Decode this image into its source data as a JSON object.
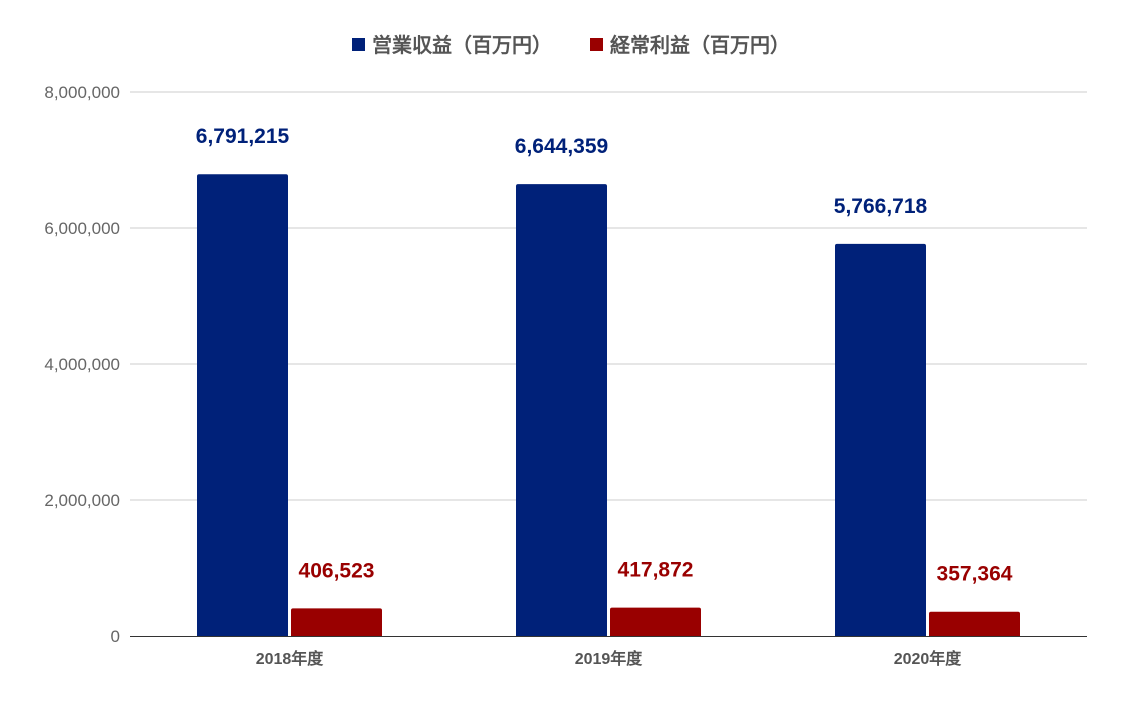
{
  "chart_data": {
    "type": "bar",
    "categories": [
      "2018年度",
      "2019年度",
      "2020年度"
    ],
    "series": [
      {
        "name": "営業収益（百万円）",
        "color": "#002179",
        "values": [
          6791215,
          6644359,
          5766718
        ],
        "labels": [
          "6,791,215",
          "6,644,359",
          "5,766,718"
        ]
      },
      {
        "name": "経常利益（百万円）",
        "color": "#990000",
        "values": [
          406523,
          417872,
          357364
        ],
        "labels": [
          "406,523",
          "417,872",
          "357,364"
        ]
      }
    ],
    "ylim": [
      0,
      8000000
    ],
    "yticks": [
      0,
      2000000,
      4000000,
      6000000,
      8000000
    ],
    "ytick_labels": [
      "0",
      "2,000,000",
      "4,000,000",
      "6,000,000",
      "8,000,000"
    ],
    "legend_position": "top",
    "grid": true,
    "title": "",
    "xlabel": "",
    "ylabel": ""
  }
}
